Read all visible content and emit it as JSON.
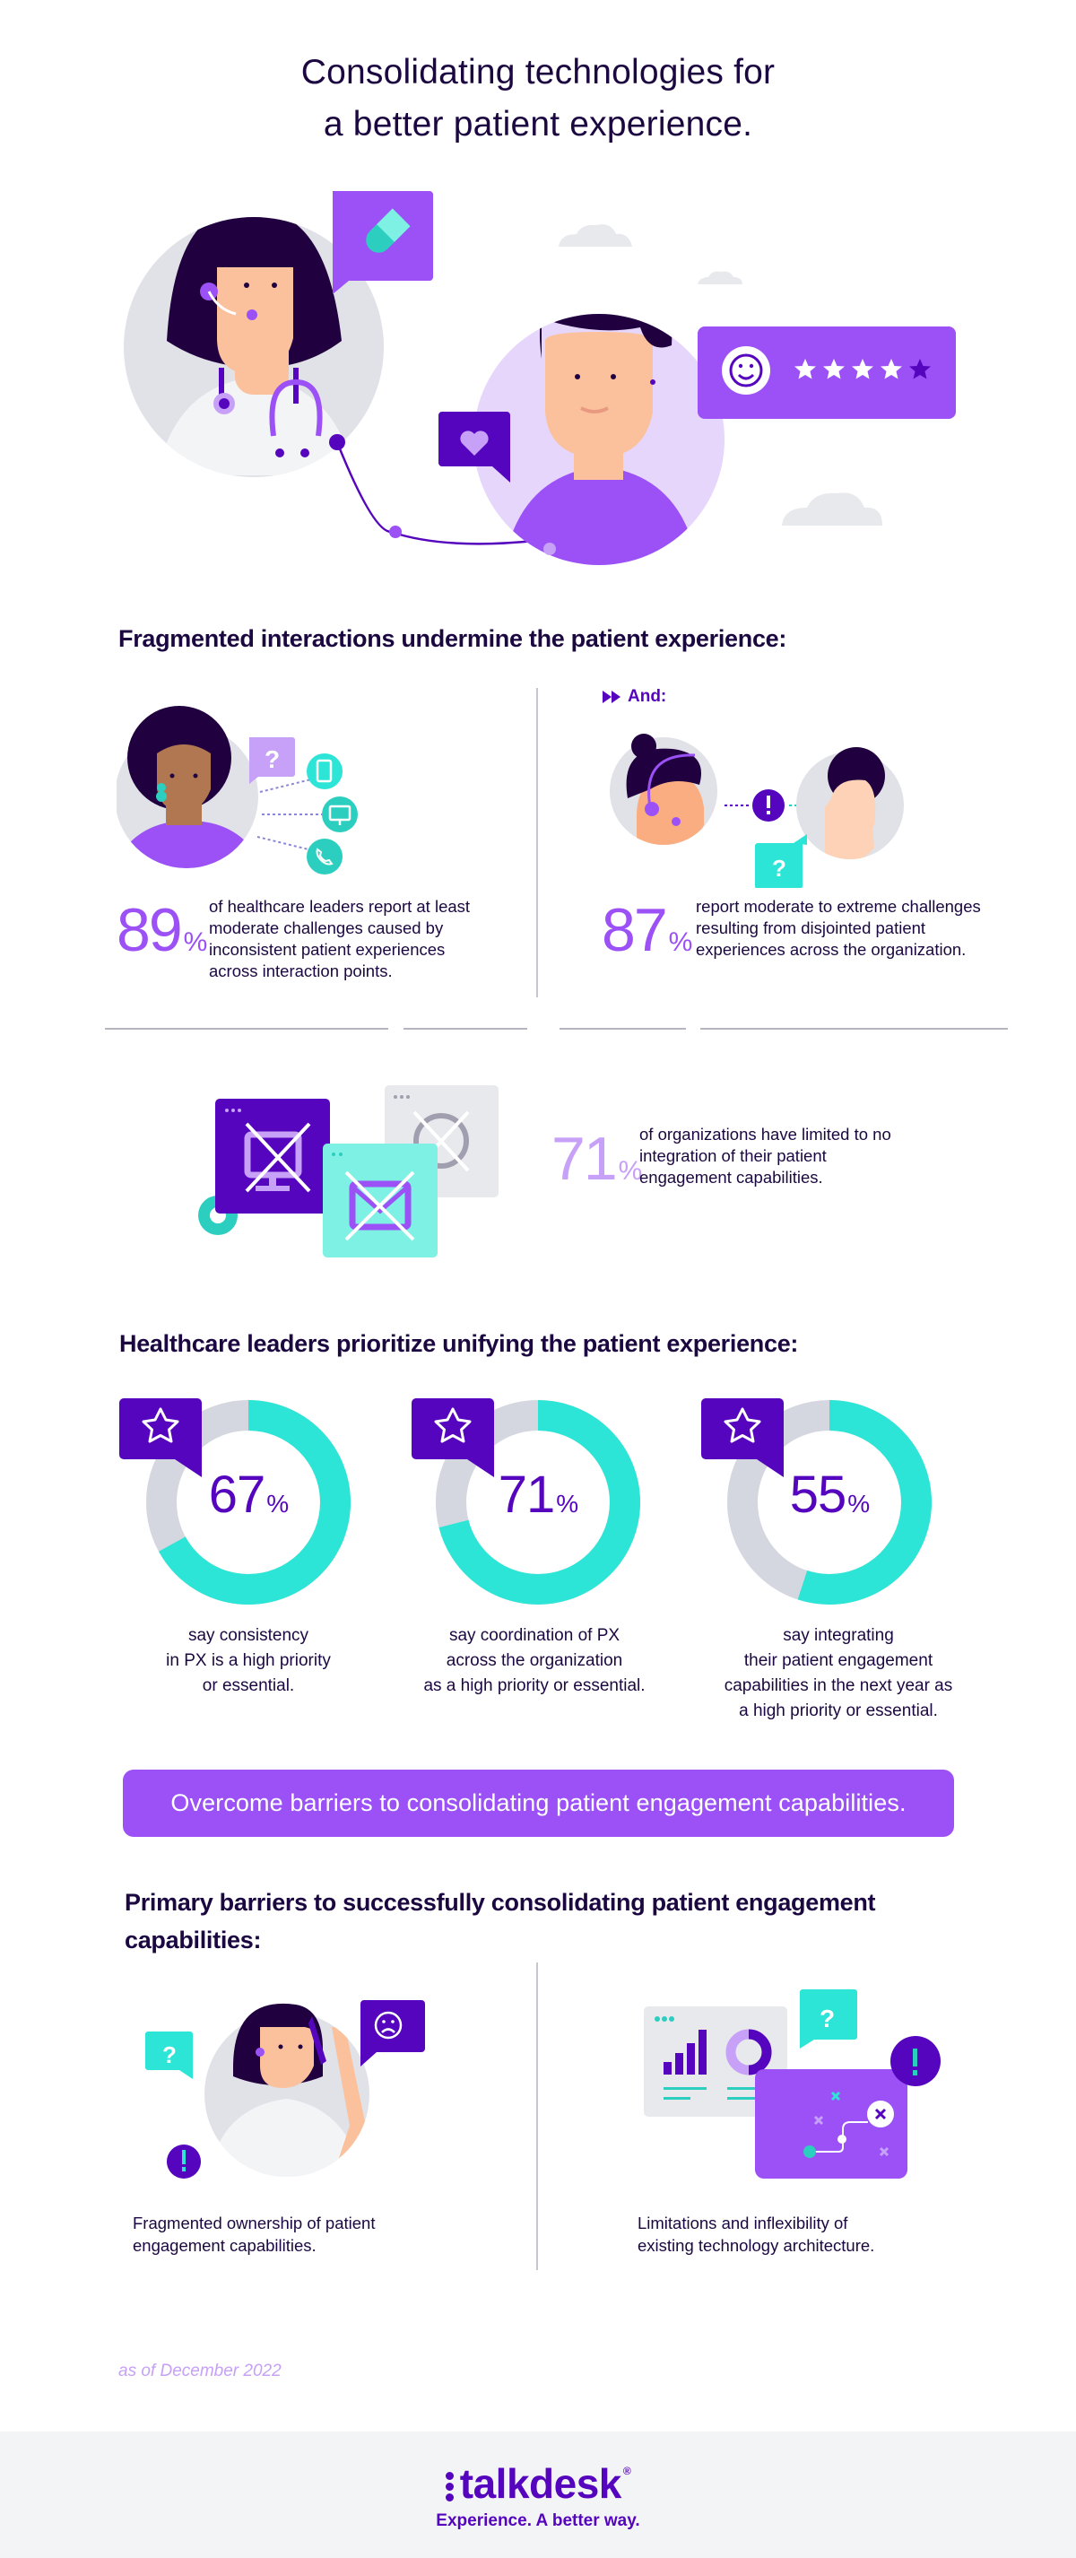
{
  "header": {
    "title_line1": "Consolidating technologies for",
    "title_line2": "a better patient experience."
  },
  "hero": {
    "rating_stars_filled": 4,
    "rating_stars_total": 5,
    "icons": [
      "pill-icon",
      "heart-icon",
      "smiley-icon",
      "star-icon"
    ]
  },
  "fragmented": {
    "heading": "Fragmented interactions undermine the patient experience:",
    "and_label": "And:",
    "stats": [
      {
        "value": "89",
        "unit": "%",
        "text": "of healthcare leaders report at least moderate challenges caused by inconsistent patient experiences across interaction points."
      },
      {
        "value": "87",
        "unit": "%",
        "text": "report moderate to extreme challenges resulting from disjointed patient experiences across the organization."
      },
      {
        "value": "71",
        "unit": "%",
        "text": "of organizations have limited to no integration of their patient engagement capabilities."
      }
    ],
    "channel_icons": [
      "tablet-icon",
      "monitor-icon",
      "phone-icon"
    ]
  },
  "priorities": {
    "heading": "Healthcare leaders prioritize unifying the patient experience:",
    "items": [
      {
        "value": "67",
        "unit": "%",
        "caption": "say consistency\nin PX is a high priority\nor essential."
      },
      {
        "value": "71",
        "unit": "%",
        "caption": "say coordination of PX\nacross the organization\nas a high priority or essential."
      },
      {
        "value": "55",
        "unit": "%",
        "caption": "say integrating\ntheir patient engagement\ncapabilities in the next year as\na high priority or essential."
      }
    ]
  },
  "chart_data": {
    "type": "pie",
    "title": "Healthcare leaders prioritize unifying the patient experience",
    "categories": [
      "Consistency in PX",
      "Coordination of PX across organization",
      "Integrating patient engagement capabilities next year"
    ],
    "values": [
      67,
      71,
      55
    ],
    "unit": "%",
    "style": "donut",
    "colors": {
      "filled": "#2ce5d6",
      "remaining": "#d4d7df"
    }
  },
  "banner": {
    "text": "Overcome barriers to consolidating patient engagement capabilities."
  },
  "barriers": {
    "heading": "Primary barriers to successfully consolidating patient engagement capabilities:",
    "items": [
      {
        "text": "Fragmented ownership of patient\nengagement capabilities."
      },
      {
        "text": "Limitations and inflexibility of\nexisting technology architecture."
      }
    ]
  },
  "footnote": "as of December 2022",
  "footer": {
    "brand": "talkdesk",
    "registered": "®",
    "tagline": "Experience. A better way."
  },
  "colors": {
    "ink": "#1c0841",
    "purple": "#9b51f5",
    "deep_purple": "#5505bd",
    "teal": "#2ce5d6",
    "lavender": "#e6d6fb",
    "gray": "#e3e5ea"
  }
}
